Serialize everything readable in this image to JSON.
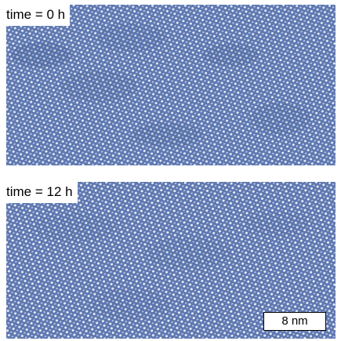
{
  "panels": [
    {
      "time_label": "time = 0 h"
    },
    {
      "time_label": "time = 12 h",
      "scale_bar_label": "8 nm"
    }
  ],
  "colors": {
    "lattice_dark": "#3f5c98",
    "lattice_mid": "#6c88c2",
    "lattice_light": "#dfe8ff",
    "label_background": "#ffffff",
    "label_text": "#000000"
  }
}
